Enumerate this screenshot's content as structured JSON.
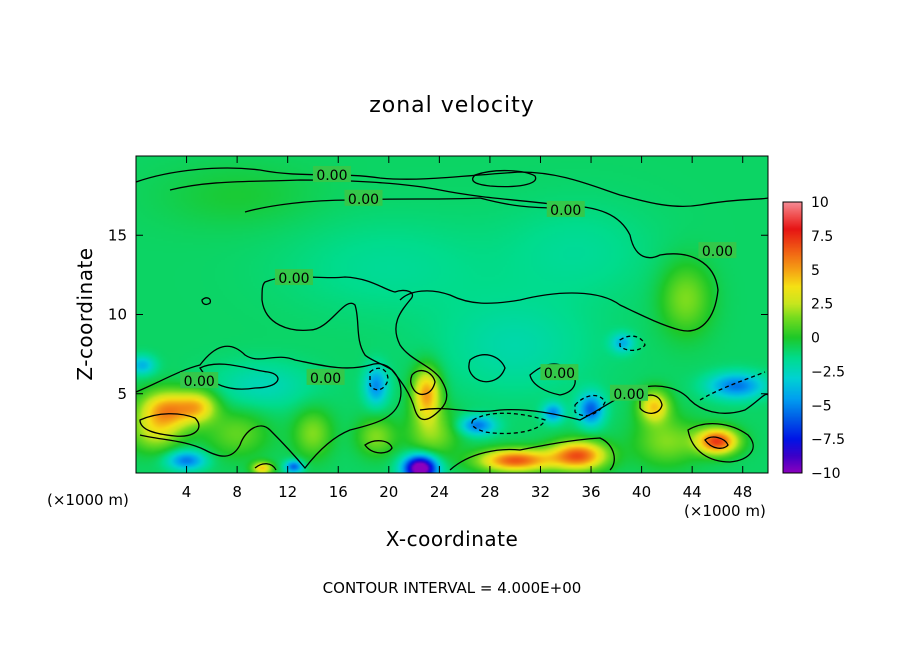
{
  "chart_data": {
    "type": "heatmap",
    "title": "zonal velocity",
    "xlabel": "X-coordinate",
    "ylabel": "Z-coordinate",
    "x_unit_left": "(×1000 m)",
    "x_unit_right": "(×1000 m)",
    "footer": "CONTOUR INTERVAL = 4.000E+00",
    "xlim": [
      0,
      50
    ],
    "ylim": [
      0,
      20
    ],
    "x_ticks": [
      4,
      8,
      12,
      16,
      20,
      24,
      28,
      32,
      36,
      40,
      44,
      48
    ],
    "y_ticks": [
      5,
      10,
      15
    ],
    "colorbar": {
      "range": [
        -10,
        10
      ],
      "ticks": [
        "10",
        "7.5",
        "5",
        "2.5",
        "0",
        "−2.5",
        "−5",
        "−7.5",
        "−10"
      ],
      "tick_values": [
        10,
        7.5,
        5,
        2.5,
        0,
        -2.5,
        -5,
        -7.5,
        -10
      ]
    },
    "contour_labels": [
      {
        "text": "0.00",
        "x": 15.5,
        "y": 18.8
      },
      {
        "text": "0.00",
        "x": 18,
        "y": 17.3
      },
      {
        "text": "0.00",
        "x": 34,
        "y": 16.6
      },
      {
        "text": "0.00",
        "x": 46,
        "y": 14
      },
      {
        "text": "0.00",
        "x": 12.5,
        "y": 12.3
      },
      {
        "text": "0.00",
        "x": 15,
        "y": 6
      },
      {
        "text": "0.00",
        "x": 5,
        "y": 5.8
      },
      {
        "text": "0.00",
        "x": 39,
        "y": 5
      },
      {
        "text": "0.00",
        "x": 33.5,
        "y": 6.3
      }
    ],
    "features": [
      {
        "x": 2.5,
        "y": 4,
        "value": 6,
        "sx": 2.2,
        "sy": 1.2
      },
      {
        "x": 5,
        "y": 4.2,
        "value": 4,
        "sx": 1.5,
        "sy": 1.0
      },
      {
        "x": 1.5,
        "y": 2.5,
        "value": 3,
        "sx": 2,
        "sy": 1.2
      },
      {
        "x": 0.5,
        "y": 6.8,
        "value": -3,
        "sx": 1.0,
        "sy": 0.6
      },
      {
        "x": 4,
        "y": 0.8,
        "value": -4.5,
        "sx": 1.5,
        "sy": 0.6
      },
      {
        "x": 8,
        "y": 2.5,
        "value": 2,
        "sx": 2.5,
        "sy": 1.5
      },
      {
        "x": 10,
        "y": 0.3,
        "value": 5,
        "sx": 0.8,
        "sy": 0.4
      },
      {
        "x": 12.5,
        "y": 0.4,
        "value": -5,
        "sx": 0.7,
        "sy": 0.4
      },
      {
        "x": 14,
        "y": 2.5,
        "value": 2.5,
        "sx": 1.5,
        "sy": 1.5
      },
      {
        "x": 19,
        "y": 5.5,
        "value": -4,
        "sx": 0.9,
        "sy": 1.2
      },
      {
        "x": 19,
        "y": 2.3,
        "value": 2.5,
        "sx": 1.5,
        "sy": 1.2
      },
      {
        "x": 23,
        "y": 5,
        "value": 6,
        "sx": 1.1,
        "sy": 1.6
      },
      {
        "x": 23.5,
        "y": 2.5,
        "value": 2.5,
        "sx": 2,
        "sy": 1.5
      },
      {
        "x": 22.5,
        "y": 0.3,
        "value": -11,
        "sx": 1.3,
        "sy": 0.8
      },
      {
        "x": 27,
        "y": 3,
        "value": -4.5,
        "sx": 1.4,
        "sy": 0.6
      },
      {
        "x": 30,
        "y": 0.8,
        "value": 7.5,
        "sx": 2.8,
        "sy": 0.7
      },
      {
        "x": 35,
        "y": 1.1,
        "value": 7.5,
        "sx": 2.2,
        "sy": 0.9
      },
      {
        "x": 33,
        "y": 3.8,
        "value": -4,
        "sx": 0.8,
        "sy": 0.6
      },
      {
        "x": 36,
        "y": 4,
        "value": -5,
        "sx": 1.0,
        "sy": 1.0
      },
      {
        "x": 41,
        "y": 4.2,
        "value": 5,
        "sx": 1.2,
        "sy": 1.0
      },
      {
        "x": 42,
        "y": 2,
        "value": 2.5,
        "sx": 2.5,
        "sy": 1.5
      },
      {
        "x": 46,
        "y": 2,
        "value": 8,
        "sx": 1.6,
        "sy": 0.8
      },
      {
        "x": 47.5,
        "y": 5.5,
        "value": -4.5,
        "sx": 2.2,
        "sy": 0.8
      },
      {
        "x": 38.5,
        "y": 8.2,
        "value": -3,
        "sx": 0.9,
        "sy": 0.6
      },
      {
        "x": 43.5,
        "y": 11,
        "value": 2.5,
        "sx": 2,
        "sy": 2.2
      },
      {
        "x": 10,
        "y": 5.5,
        "value": -1.5,
        "sx": 4,
        "sy": 1.5
      },
      {
        "x": 30,
        "y": 8,
        "value": -1.2,
        "sx": 6,
        "sy": 3
      },
      {
        "x": 20,
        "y": 13,
        "value": -0.8,
        "sx": 8,
        "sy": 3
      },
      {
        "x": 35,
        "y": 14,
        "value": -0.8,
        "sx": 6,
        "sy": 3
      },
      {
        "x": 8,
        "y": 17.5,
        "value": 0.7,
        "sx": 6,
        "sy": 2
      }
    ]
  }
}
